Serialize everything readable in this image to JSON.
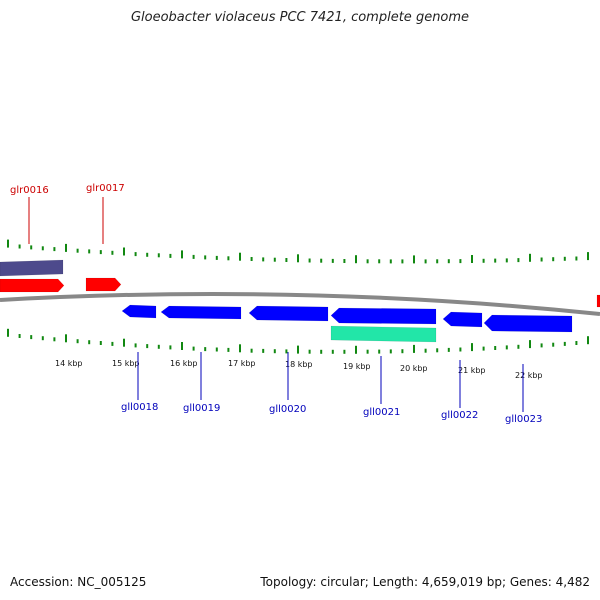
{
  "title": "Gloeobacter violaceus PCC 7421, complete genome",
  "footer": {
    "accession": "Accession: NC_005125",
    "stats": "Topology: circular; Length: 4,659,019 bp; Genes: 4,482"
  },
  "colors": {
    "backbone": "#888888",
    "forward_gene": "#ff0000",
    "reverse_gene": "#0000ff",
    "feature_purple": "#4d4a8c",
    "feature_teal": "#22e6a8",
    "ticks": "#118811",
    "forward_label": "#cc0000",
    "reverse_label": "#0000bb"
  },
  "scale_labels": [
    "14 kbp",
    "15 kbp",
    "16 kbp",
    "17 kbp",
    "18 kbp",
    "19 kbp",
    "20 kbp",
    "21 kbp",
    "22 kbp"
  ],
  "forward_genes": [
    "glr0016",
    "glr0017"
  ],
  "reverse_genes": [
    "gll0018",
    "gll0019",
    "gll0020",
    "gll0021",
    "gll0022",
    "gll0023"
  ]
}
